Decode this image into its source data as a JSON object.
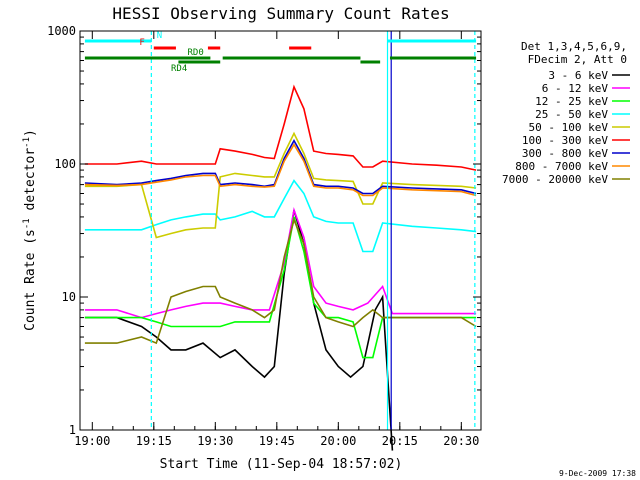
{
  "chart_data": {
    "type": "line",
    "title": "HESSI Observing Summary Count Rates",
    "xlabel": "Start Time (11-Sep-04 18:57:02)",
    "ylabel_main": "Count Rate (s",
    "ylabel_sup1": "-1",
    "ylabel_mid": " detector",
    "ylabel_sup2": "-1",
    "ylabel_end": ")",
    "date_stamp": "9-Dec-2009 17:38",
    "y_scale": "log",
    "ylim": [
      1,
      1000
    ],
    "xlim_minutes": [
      18.95,
      20.58
    ],
    "x_tick_labels": [
      "19:00",
      "19:15",
      "19:30",
      "19:45",
      "20:00",
      "20:15",
      "20:30"
    ],
    "x_tick_values": [
      19.0,
      19.25,
      19.5,
      19.75,
      20.0,
      20.25,
      20.5
    ],
    "y_tick_labels": [
      "1",
      "10",
      "100",
      "1000"
    ],
    "y_tick_values": [
      1,
      10,
      100,
      1000
    ],
    "legend_header": [
      "Det 1,3,4,5,6,9,",
      "FDecim 2, Att 0"
    ],
    "legend_position": "right",
    "series": [
      {
        "name": "3 - 6 keV",
        "color": "#000000",
        "points": [
          [
            18.97,
            7
          ],
          [
            19.1,
            7
          ],
          [
            19.2,
            6
          ],
          [
            19.26,
            5
          ],
          [
            19.32,
            4
          ],
          [
            19.38,
            4
          ],
          [
            19.45,
            4.5
          ],
          [
            19.52,
            3.5
          ],
          [
            19.58,
            4
          ],
          [
            19.65,
            3
          ],
          [
            19.7,
            2.5
          ],
          [
            19.74,
            3
          ],
          [
            19.78,
            15
          ],
          [
            19.82,
            45
          ],
          [
            19.86,
            25
          ],
          [
            19.9,
            9
          ],
          [
            19.95,
            4
          ],
          [
            20.0,
            3
          ],
          [
            20.05,
            2.5
          ],
          [
            20.1,
            3
          ],
          [
            20.15,
            8
          ],
          [
            20.18,
            10
          ],
          [
            20.22,
            0.7
          ]
        ]
      },
      {
        "name": "6 - 12 keV",
        "color": "#ff00ff",
        "points": [
          [
            18.97,
            8
          ],
          [
            19.1,
            8
          ],
          [
            19.2,
            7
          ],
          [
            19.26,
            7.5
          ],
          [
            19.32,
            8
          ],
          [
            19.38,
            8.5
          ],
          [
            19.45,
            9
          ],
          [
            19.52,
            9
          ],
          [
            19.58,
            8.5
          ],
          [
            19.65,
            8
          ],
          [
            19.72,
            8
          ],
          [
            19.78,
            18
          ],
          [
            19.82,
            45
          ],
          [
            19.86,
            28
          ],
          [
            19.9,
            12
          ],
          [
            19.95,
            9
          ],
          [
            20.0,
            8.5
          ],
          [
            20.06,
            8
          ],
          [
            20.12,
            9
          ],
          [
            20.18,
            12
          ],
          [
            20.22,
            7.5
          ],
          [
            20.3,
            7.5
          ],
          [
            20.4,
            7.5
          ],
          [
            20.5,
            7.5
          ],
          [
            20.56,
            7.5
          ]
        ]
      },
      {
        "name": "12 - 25 keV",
        "color": "#00ff00",
        "points": [
          [
            18.97,
            7
          ],
          [
            19.1,
            7
          ],
          [
            19.2,
            7
          ],
          [
            19.26,
            6.5
          ],
          [
            19.32,
            6
          ],
          [
            19.38,
            6
          ],
          [
            19.45,
            6
          ],
          [
            19.52,
            6
          ],
          [
            19.58,
            6.5
          ],
          [
            19.65,
            6.5
          ],
          [
            19.72,
            6.5
          ],
          [
            19.78,
            16
          ],
          [
            19.82,
            40
          ],
          [
            19.86,
            22
          ],
          [
            19.9,
            9
          ],
          [
            19.95,
            7
          ],
          [
            20.0,
            7
          ],
          [
            20.06,
            6.5
          ],
          [
            20.1,
            3.5
          ],
          [
            20.14,
            3.5
          ],
          [
            20.18,
            7
          ],
          [
            20.3,
            7
          ],
          [
            20.4,
            7
          ],
          [
            20.5,
            7
          ],
          [
            20.56,
            7
          ]
        ]
      },
      {
        "name": "25 - 50 keV",
        "color": "#00ffff",
        "points": [
          [
            18.97,
            32
          ],
          [
            19.1,
            32
          ],
          [
            19.2,
            32
          ],
          [
            19.26,
            35
          ],
          [
            19.32,
            38
          ],
          [
            19.38,
            40
          ],
          [
            19.45,
            42
          ],
          [
            19.5,
            42
          ],
          [
            19.52,
            38
          ],
          [
            19.58,
            40
          ],
          [
            19.65,
            44
          ],
          [
            19.7,
            40
          ],
          [
            19.74,
            40
          ],
          [
            19.78,
            55
          ],
          [
            19.82,
            75
          ],
          [
            19.86,
            60
          ],
          [
            19.9,
            40
          ],
          [
            19.95,
            37
          ],
          [
            20.0,
            36
          ],
          [
            20.06,
            36
          ],
          [
            20.1,
            22
          ],
          [
            20.14,
            22
          ],
          [
            20.18,
            36
          ],
          [
            20.3,
            34
          ],
          [
            20.4,
            33
          ],
          [
            20.5,
            32
          ],
          [
            20.56,
            31
          ]
        ]
      },
      {
        "name": "50 - 100 keV",
        "color": "#cccc00",
        "points": [
          [
            18.97,
            68
          ],
          [
            19.1,
            68
          ],
          [
            19.2,
            70
          ],
          [
            19.26,
            28
          ],
          [
            19.32,
            30
          ],
          [
            19.38,
            32
          ],
          [
            19.45,
            33
          ],
          [
            19.5,
            33
          ],
          [
            19.52,
            80
          ],
          [
            19.58,
            85
          ],
          [
            19.65,
            82
          ],
          [
            19.7,
            80
          ],
          [
            19.74,
            80
          ],
          [
            19.78,
            120
          ],
          [
            19.82,
            170
          ],
          [
            19.86,
            120
          ],
          [
            19.9,
            78
          ],
          [
            19.95,
            76
          ],
          [
            20.0,
            75
          ],
          [
            20.06,
            74
          ],
          [
            20.1,
            50
          ],
          [
            20.14,
            50
          ],
          [
            20.18,
            72
          ],
          [
            20.3,
            70
          ],
          [
            20.4,
            69
          ],
          [
            20.5,
            68
          ],
          [
            20.56,
            66
          ]
        ]
      },
      {
        "name": "100 - 300 keV",
        "color": "#ff0000",
        "points": [
          [
            18.97,
            100
          ],
          [
            19.1,
            100
          ],
          [
            19.2,
            105
          ],
          [
            19.26,
            100
          ],
          [
            19.32,
            100
          ],
          [
            19.38,
            100
          ],
          [
            19.45,
            100
          ],
          [
            19.5,
            100
          ],
          [
            19.52,
            130
          ],
          [
            19.58,
            125
          ],
          [
            19.65,
            118
          ],
          [
            19.7,
            112
          ],
          [
            19.74,
            110
          ],
          [
            19.78,
            200
          ],
          [
            19.82,
            380
          ],
          [
            19.86,
            260
          ],
          [
            19.9,
            125
          ],
          [
            19.95,
            120
          ],
          [
            20.0,
            118
          ],
          [
            20.06,
            115
          ],
          [
            20.1,
            95
          ],
          [
            20.14,
            95
          ],
          [
            20.18,
            105
          ],
          [
            20.3,
            100
          ],
          [
            20.4,
            98
          ],
          [
            20.5,
            95
          ],
          [
            20.56,
            90
          ]
        ]
      },
      {
        "name": "300 - 800 keV",
        "color": "#0000cc",
        "points": [
          [
            18.97,
            72
          ],
          [
            19.1,
            70
          ],
          [
            19.2,
            72
          ],
          [
            19.26,
            75
          ],
          [
            19.32,
            78
          ],
          [
            19.38,
            82
          ],
          [
            19.45,
            85
          ],
          [
            19.5,
            85
          ],
          [
            19.52,
            70
          ],
          [
            19.58,
            72
          ],
          [
            19.65,
            70
          ],
          [
            19.7,
            68
          ],
          [
            19.74,
            70
          ],
          [
            19.78,
            110
          ],
          [
            19.82,
            150
          ],
          [
            19.86,
            110
          ],
          [
            19.9,
            70
          ],
          [
            19.95,
            68
          ],
          [
            20.0,
            68
          ],
          [
            20.06,
            66
          ],
          [
            20.1,
            60
          ],
          [
            20.14,
            60
          ],
          [
            20.18,
            68
          ],
          [
            20.3,
            66
          ],
          [
            20.4,
            65
          ],
          [
            20.5,
            64
          ],
          [
            20.56,
            60
          ]
        ]
      },
      {
        "name": "800 - 7000 keV",
        "color": "#ff8800",
        "points": [
          [
            18.97,
            70
          ],
          [
            19.1,
            69
          ],
          [
            19.2,
            70
          ],
          [
            19.26,
            73
          ],
          [
            19.32,
            76
          ],
          [
            19.38,
            80
          ],
          [
            19.45,
            82
          ],
          [
            19.5,
            82
          ],
          [
            19.52,
            68
          ],
          [
            19.58,
            70
          ],
          [
            19.65,
            68
          ],
          [
            19.7,
            67
          ],
          [
            19.74,
            68
          ],
          [
            19.78,
            105
          ],
          [
            19.82,
            140
          ],
          [
            19.86,
            105
          ],
          [
            19.9,
            68
          ],
          [
            19.95,
            66
          ],
          [
            20.0,
            66
          ],
          [
            20.06,
            64
          ],
          [
            20.1,
            58
          ],
          [
            20.14,
            58
          ],
          [
            20.18,
            66
          ],
          [
            20.3,
            64
          ],
          [
            20.4,
            63
          ],
          [
            20.5,
            62
          ],
          [
            20.56,
            58
          ]
        ]
      },
      {
        "name": "7000 - 20000 keV",
        "color": "#808000",
        "points": [
          [
            18.97,
            4.5
          ],
          [
            19.1,
            4.5
          ],
          [
            19.2,
            5
          ],
          [
            19.26,
            4.5
          ],
          [
            19.32,
            10
          ],
          [
            19.38,
            11
          ],
          [
            19.45,
            12
          ],
          [
            19.5,
            12
          ],
          [
            19.52,
            10
          ],
          [
            19.58,
            9
          ],
          [
            19.65,
            8
          ],
          [
            19.7,
            7
          ],
          [
            19.74,
            8
          ],
          [
            19.78,
            20
          ],
          [
            19.82,
            38
          ],
          [
            19.86,
            25
          ],
          [
            19.9,
            10
          ],
          [
            19.95,
            7
          ],
          [
            20.0,
            6.5
          ],
          [
            20.06,
            6
          ],
          [
            20.1,
            7
          ],
          [
            20.14,
            8
          ],
          [
            20.18,
            7
          ],
          [
            20.3,
            7
          ],
          [
            20.4,
            7
          ],
          [
            20.5,
            7
          ],
          [
            20.56,
            6
          ]
        ]
      }
    ],
    "vertical_lines": [
      {
        "x": 19.24,
        "color": "#00ffff",
        "style": "dashed"
      },
      {
        "x": 20.2,
        "color": "#00ffff",
        "style": "solid"
      },
      {
        "x": 20.215,
        "color": "#0000cc",
        "style": "solid"
      },
      {
        "x": 20.555,
        "color": "#00ffff",
        "style": "dashed"
      }
    ],
    "flag_bars": [
      {
        "label": "N",
        "color": "#00ffff",
        "row": 0,
        "segments": [
          [
            18.97,
            19.24
          ],
          [
            20.2,
            20.56
          ]
        ]
      },
      {
        "label": "F",
        "color": "#ff0000",
        "row": 1,
        "segments": [
          [
            19.25,
            19.34
          ],
          [
            19.47,
            19.52
          ],
          [
            19.8,
            19.89
          ]
        ]
      },
      {
        "label": "RD0",
        "color": "#008000",
        "row": 2,
        "segments": [
          [
            18.97,
            19.48
          ],
          [
            19.53,
            20.09
          ],
          [
            20.21,
            20.56
          ]
        ]
      },
      {
        "label": "RD4",
        "color": "#008000",
        "row": 3,
        "segments": [
          [
            19.35,
            19.52
          ],
          [
            20.09,
            20.17
          ]
        ]
      }
    ]
  }
}
